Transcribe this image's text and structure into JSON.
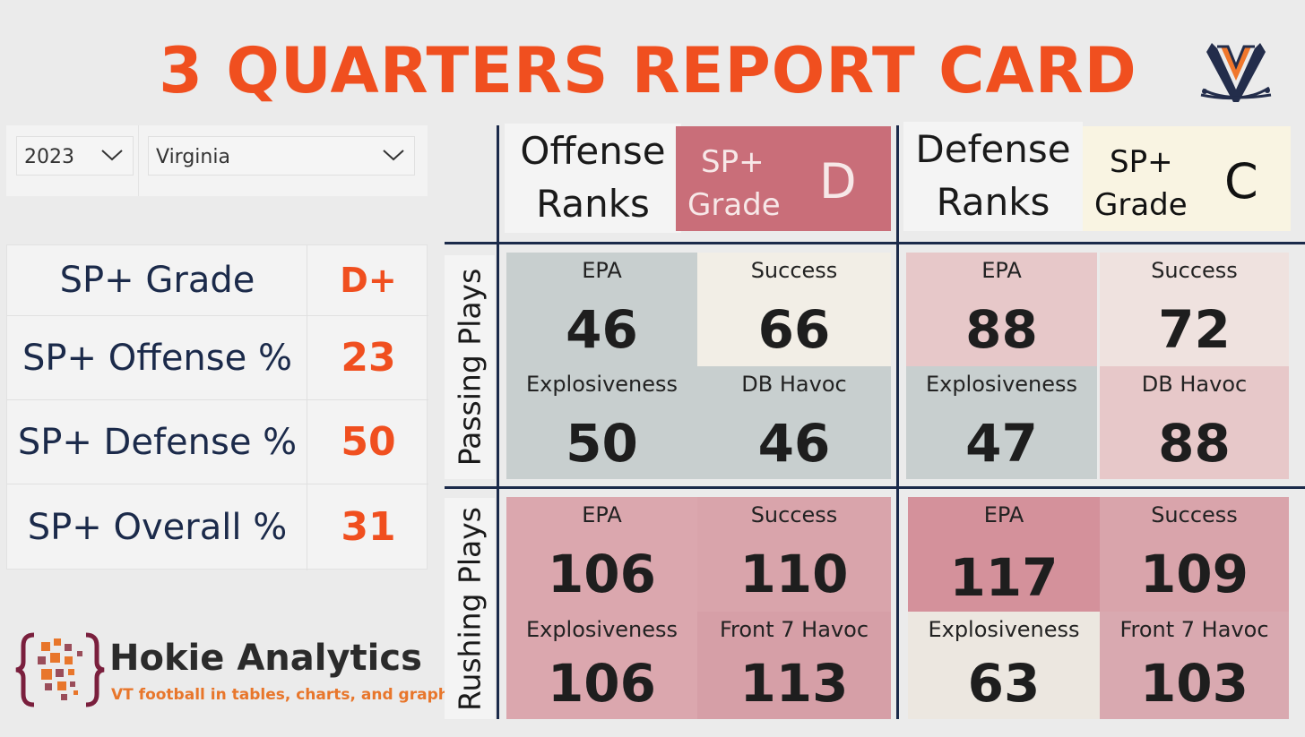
{
  "title": "3 QUARTERS REPORT CARD",
  "colors": {
    "accent": "#f04f1f",
    "navy": "#1b2a4a"
  },
  "logo_icon": "virginia-v-sabres-icon",
  "filters": {
    "year": "2023",
    "team": "Virginia"
  },
  "summary": [
    {
      "label": "SP+ Grade",
      "value": "D+"
    },
    {
      "label": "SP+ Offense %",
      "value": "23"
    },
    {
      "label": "SP+ Defense %",
      "value": "50"
    },
    {
      "label": "SP+ Overall %",
      "value": "31"
    }
  ],
  "brand": {
    "name": "Hokie Analytics",
    "tagline": "VT football in tables, charts, and graphs"
  },
  "offense": {
    "header": [
      "Offense",
      "Ranks"
    ],
    "grade_label": [
      "SP+",
      "Grade"
    ],
    "grade": "D",
    "passing": [
      {
        "label": "EPA",
        "value": "46"
      },
      {
        "label": "Success",
        "value": "66"
      },
      {
        "label": "Explosiveness",
        "value": "50"
      },
      {
        "label": "DB Havoc",
        "value": "46"
      }
    ],
    "rushing": [
      {
        "label": "EPA",
        "value": "106"
      },
      {
        "label": "Success",
        "value": "110"
      },
      {
        "label": "Explosiveness",
        "value": "106"
      },
      {
        "label": "Front 7 Havoc",
        "value": "113"
      }
    ]
  },
  "defense": {
    "header": [
      "Defense",
      "Ranks"
    ],
    "grade_label": [
      "SP+",
      "Grade"
    ],
    "grade": "C",
    "passing": [
      {
        "label": "EPA",
        "value": "88"
      },
      {
        "label": "Success",
        "value": "72"
      },
      {
        "label": "Explosiveness",
        "value": "47"
      },
      {
        "label": "DB Havoc",
        "value": "88"
      }
    ],
    "rushing": [
      {
        "label": "EPA",
        "value": "117"
      },
      {
        "label": "Success",
        "value": "109"
      },
      {
        "label": "Explosiveness",
        "value": "63"
      },
      {
        "label": "Front 7 Havoc",
        "value": "103"
      }
    ]
  },
  "row_labels": {
    "passing": "Passing Plays",
    "rushing": "Rushing Plays"
  }
}
